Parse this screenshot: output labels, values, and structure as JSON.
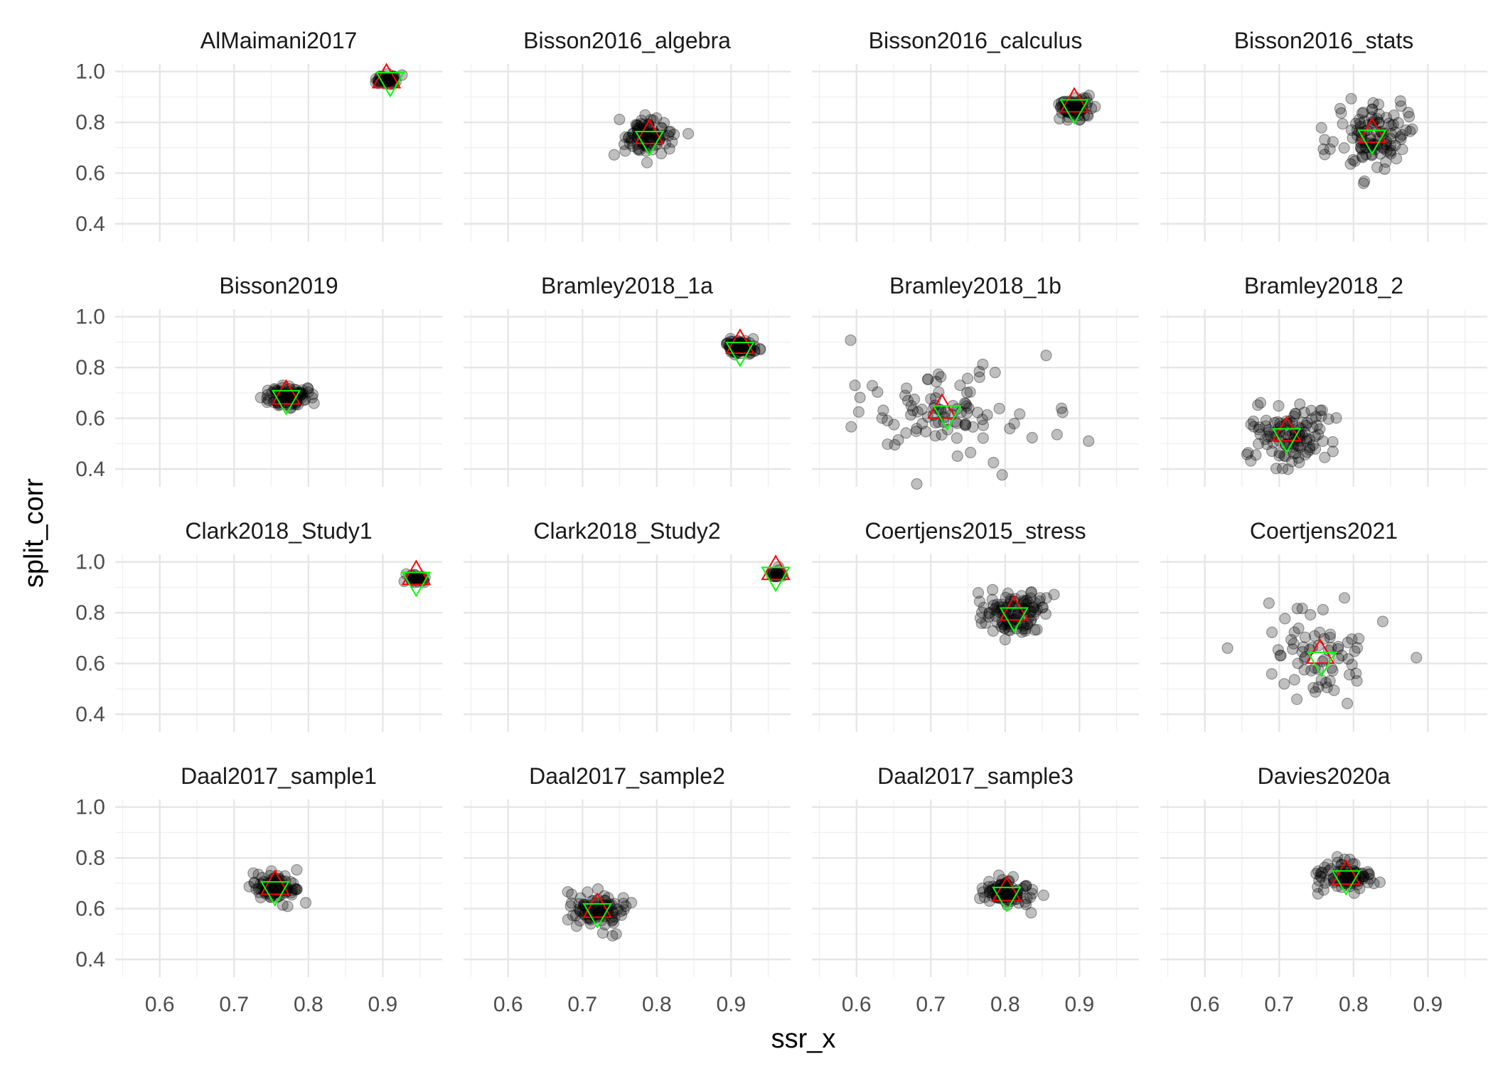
{
  "chart_data": {
    "type": "scatter",
    "layout": "facet-grid",
    "facet_columns": 4,
    "xlabel": "ssr_x",
    "ylabel": "split_corr",
    "xlim": [
      0.54,
      0.98
    ],
    "ylim": [
      0.33,
      1.03
    ],
    "x_ticks": [
      0.6,
      0.7,
      0.8,
      0.9
    ],
    "x_tick_labels": [
      "0.6",
      "0.7",
      "0.8",
      "0.9"
    ],
    "y_ticks": [
      0.4,
      0.6,
      0.8,
      1.0
    ],
    "y_tick_labels": [
      "0.4",
      "0.6",
      "0.8",
      "1.0"
    ],
    "grid": true,
    "legend": "none",
    "colors": {
      "points": "#000000",
      "point_alpha": 0.25,
      "up_triangle": "#ff0000",
      "down_triangle": "#00ff00",
      "grid": "#ebebeb"
    },
    "panels": [
      {
        "title": "AlMaimani2017",
        "cx": 0.905,
        "cy": 0.965,
        "sx": 0.008,
        "sy": 0.01,
        "n": 40,
        "up": [
          0.905,
          0.97
        ],
        "down": [
          0.91,
          0.962
        ]
      },
      {
        "title": "Bisson2016_algebra",
        "cx": 0.79,
        "cy": 0.745,
        "sx": 0.018,
        "sy": 0.035,
        "n": 90,
        "up": [
          0.79,
          0.75
        ],
        "down": [
          0.79,
          0.73
        ]
      },
      {
        "title": "Bisson2016_calculus",
        "cx": 0.893,
        "cy": 0.86,
        "sx": 0.01,
        "sy": 0.025,
        "n": 70,
        "up": [
          0.893,
          0.875
        ],
        "down": [
          0.893,
          0.855
        ]
      },
      {
        "title": "Bisson2016_stats",
        "cx": 0.825,
        "cy": 0.745,
        "sx": 0.025,
        "sy": 0.06,
        "n": 110,
        "up": [
          0.825,
          0.755
        ],
        "down": [
          0.825,
          0.735
        ]
      },
      {
        "title": "Bisson2019",
        "cx": 0.77,
        "cy": 0.685,
        "sx": 0.015,
        "sy": 0.022,
        "n": 80,
        "up": [
          0.77,
          0.69
        ],
        "down": [
          0.77,
          0.675
        ]
      },
      {
        "title": "Bramley2018_1a",
        "cx": 0.912,
        "cy": 0.88,
        "sx": 0.012,
        "sy": 0.015,
        "n": 70,
        "up": [
          0.912,
          0.89
        ],
        "down": [
          0.912,
          0.865
        ]
      },
      {
        "title": "Bramley2018_1b",
        "cx": 0.72,
        "cy": 0.625,
        "sx": 0.06,
        "sy": 0.09,
        "n": 95,
        "up": [
          0.715,
          0.635
        ],
        "down": [
          0.722,
          0.615
        ]
      },
      {
        "title": "Bramley2018_2",
        "cx": 0.71,
        "cy": 0.535,
        "sx": 0.03,
        "sy": 0.055,
        "n": 110,
        "up": [
          0.71,
          0.545
        ],
        "down": [
          0.71,
          0.525
        ]
      },
      {
        "title": "Clark2018_Study1",
        "cx": 0.945,
        "cy": 0.935,
        "sx": 0.006,
        "sy": 0.01,
        "n": 30,
        "up": [
          0.945,
          0.945
        ],
        "down": [
          0.945,
          0.925
        ]
      },
      {
        "title": "Clark2018_Study2",
        "cx": 0.96,
        "cy": 0.955,
        "sx": 0.004,
        "sy": 0.008,
        "n": 20,
        "up": [
          0.96,
          0.965
        ],
        "down": [
          0.96,
          0.945
        ]
      },
      {
        "title": "Coertjens2015_stress",
        "cx": 0.812,
        "cy": 0.795,
        "sx": 0.022,
        "sy": 0.045,
        "n": 110,
        "up": [
          0.812,
          0.805
        ],
        "down": [
          0.812,
          0.785
        ]
      },
      {
        "title": "Coertjens2021",
        "cx": 0.755,
        "cy": 0.62,
        "sx": 0.04,
        "sy": 0.1,
        "n": 70,
        "up": [
          0.755,
          0.635
        ],
        "down": [
          0.757,
          0.61
        ]
      },
      {
        "title": "Daal2017_sample1",
        "cx": 0.755,
        "cy": 0.685,
        "sx": 0.018,
        "sy": 0.028,
        "n": 80,
        "up": [
          0.755,
          0.69
        ],
        "down": [
          0.755,
          0.672
        ]
      },
      {
        "title": "Daal2017_sample2",
        "cx": 0.72,
        "cy": 0.595,
        "sx": 0.02,
        "sy": 0.035,
        "n": 90,
        "up": [
          0.72,
          0.6
        ],
        "down": [
          0.72,
          0.585
        ]
      },
      {
        "title": "Daal2017_sample3",
        "cx": 0.802,
        "cy": 0.658,
        "sx": 0.018,
        "sy": 0.03,
        "n": 80,
        "up": [
          0.802,
          0.665
        ],
        "down": [
          0.802,
          0.65
        ]
      },
      {
        "title": "Davies2020a",
        "cx": 0.79,
        "cy": 0.725,
        "sx": 0.022,
        "sy": 0.03,
        "n": 80,
        "up": [
          0.79,
          0.73
        ],
        "down": [
          0.79,
          0.715
        ]
      }
    ]
  }
}
